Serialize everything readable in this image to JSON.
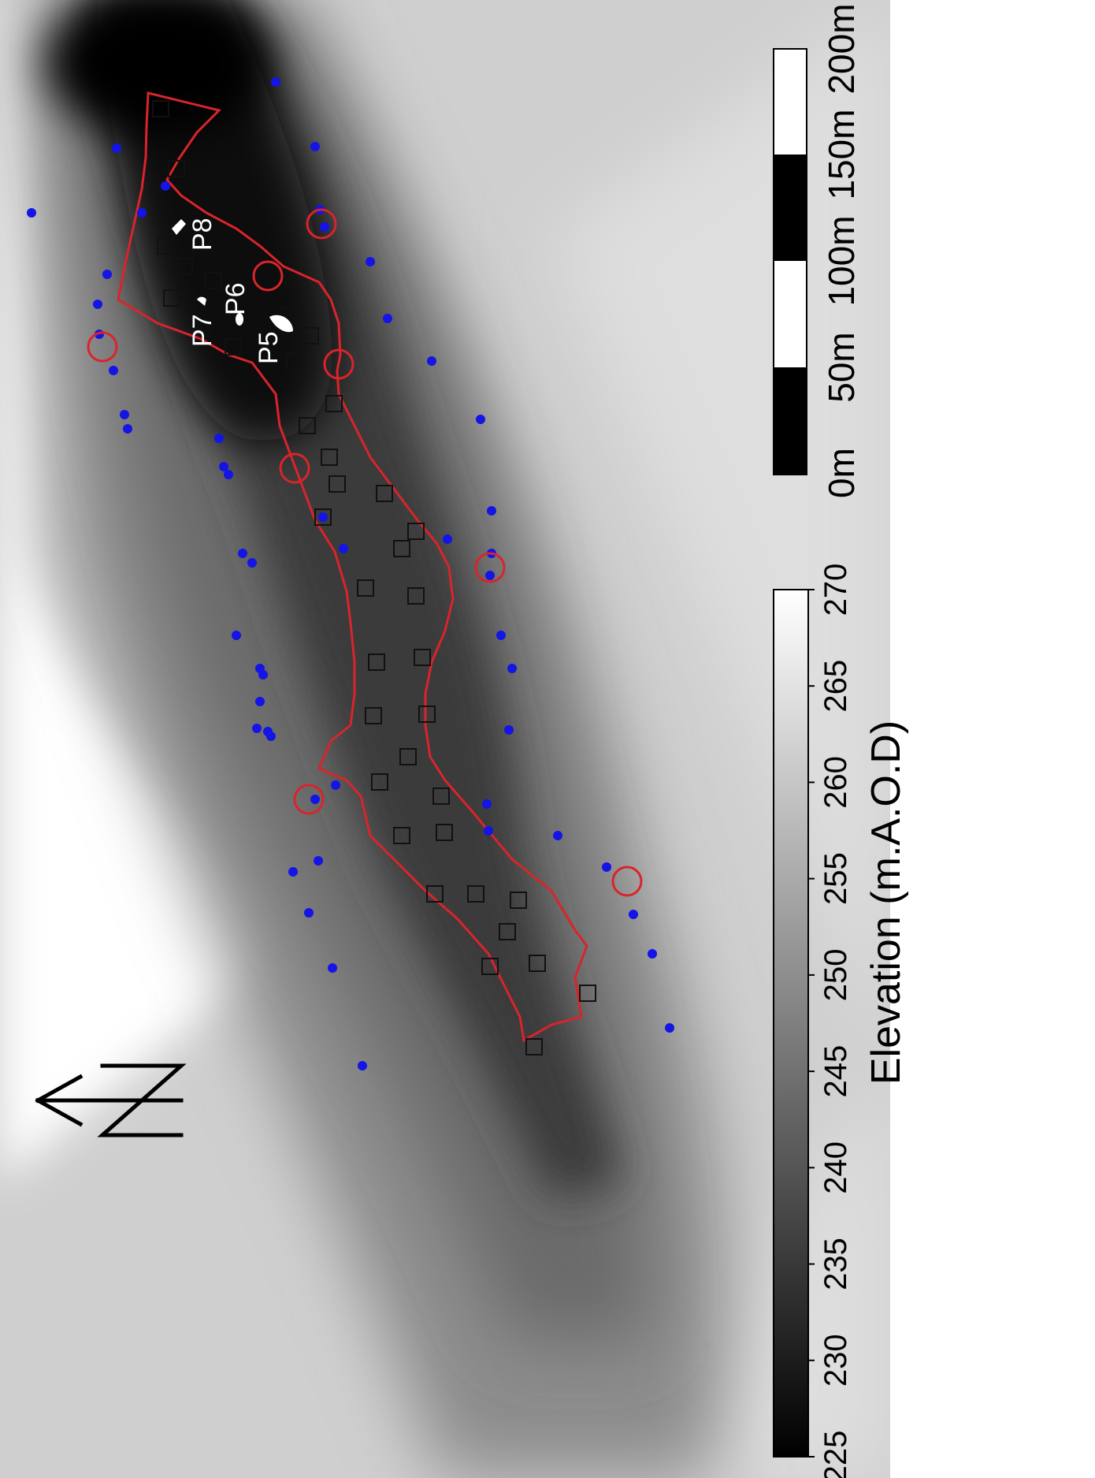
{
  "map": {
    "point_labels": [
      "P5",
      "P6",
      "P7",
      "P8"
    ],
    "colors": {
      "boundary": "#d9242b",
      "circle": "#d9242b",
      "dot": "#1414e6",
      "square": "#111111",
      "point_fill": "#ffffff"
    }
  },
  "north_arrow": {
    "icon": "north-arrow-icon",
    "letter": "N"
  },
  "scale_bar": {
    "labels": [
      "0m",
      "50m",
      "100m",
      "150m",
      "200m"
    ]
  },
  "elevation_legend": {
    "title": "Elevation (m.A.O.D)",
    "min": 225,
    "max": 270,
    "ticks": [
      "225",
      "230",
      "235",
      "240",
      "245",
      "250",
      "255",
      "260",
      "265",
      "270"
    ]
  }
}
